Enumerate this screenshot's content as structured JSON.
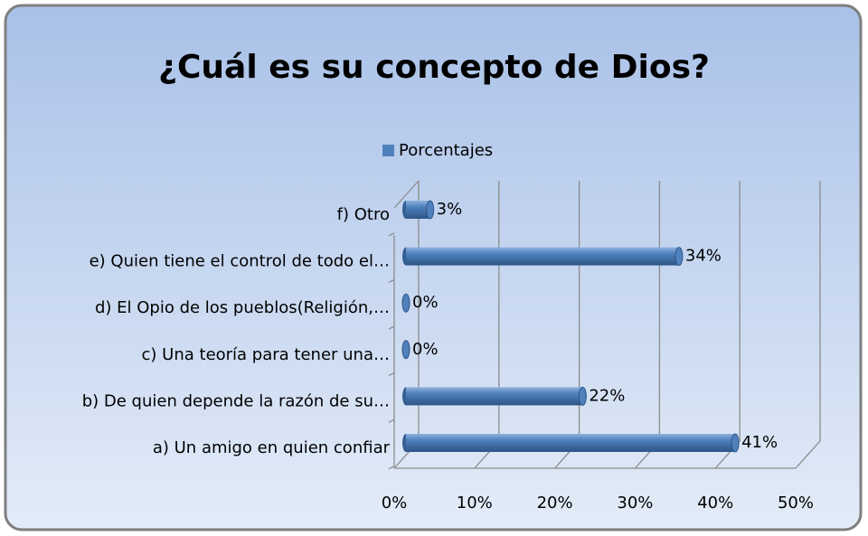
{
  "chart_data": {
    "type": "bar",
    "orientation": "horizontal",
    "title": "¿Cuál es su concepto de Dios?",
    "categories": [
      "a) Un amigo en quien confiar",
      "b) De quien depende la razón de su…",
      "c) Una teoría para tener una…",
      "d) El Opio de los pueblos(Religión,…",
      "e) Quien tiene el control de todo el…",
      "f) Otro"
    ],
    "series": [
      {
        "name": "Porcentajes",
        "color": "#4f81bd",
        "values": [
          41,
          22,
          0,
          0,
          34,
          3
        ],
        "value_labels": [
          "41%",
          "22%",
          "0%",
          "0%",
          "34%",
          "3%"
        ]
      }
    ],
    "xlim": [
      0,
      50
    ],
    "xticks": [
      {
        "value": 0,
        "label": "0%"
      },
      {
        "value": 10,
        "label": "10%"
      },
      {
        "value": 20,
        "label": "20%"
      },
      {
        "value": 30,
        "label": "30%"
      },
      {
        "value": 40,
        "label": "40%"
      },
      {
        "value": 50,
        "label": "50%"
      }
    ],
    "grid": true,
    "legend": "top"
  }
}
